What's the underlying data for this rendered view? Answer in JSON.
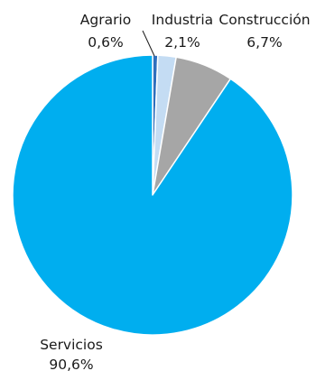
{
  "chart_data": {
    "type": "pie",
    "categories": [
      "Agrario",
      "Industria",
      "Construcción",
      "Servicios"
    ],
    "values": [
      0.6,
      2.1,
      6.7,
      90.6
    ],
    "value_labels": [
      "0,6%",
      "2,1%",
      "6,7%",
      "90,6%"
    ],
    "colors": [
      "#2e6fbd",
      "#c4dcf3",
      "#a6a6a6",
      "#00aeef"
    ],
    "slice_border": "#ffffff",
    "start_angle_deg": 0,
    "direction": "clockwise",
    "legend": "none"
  }
}
